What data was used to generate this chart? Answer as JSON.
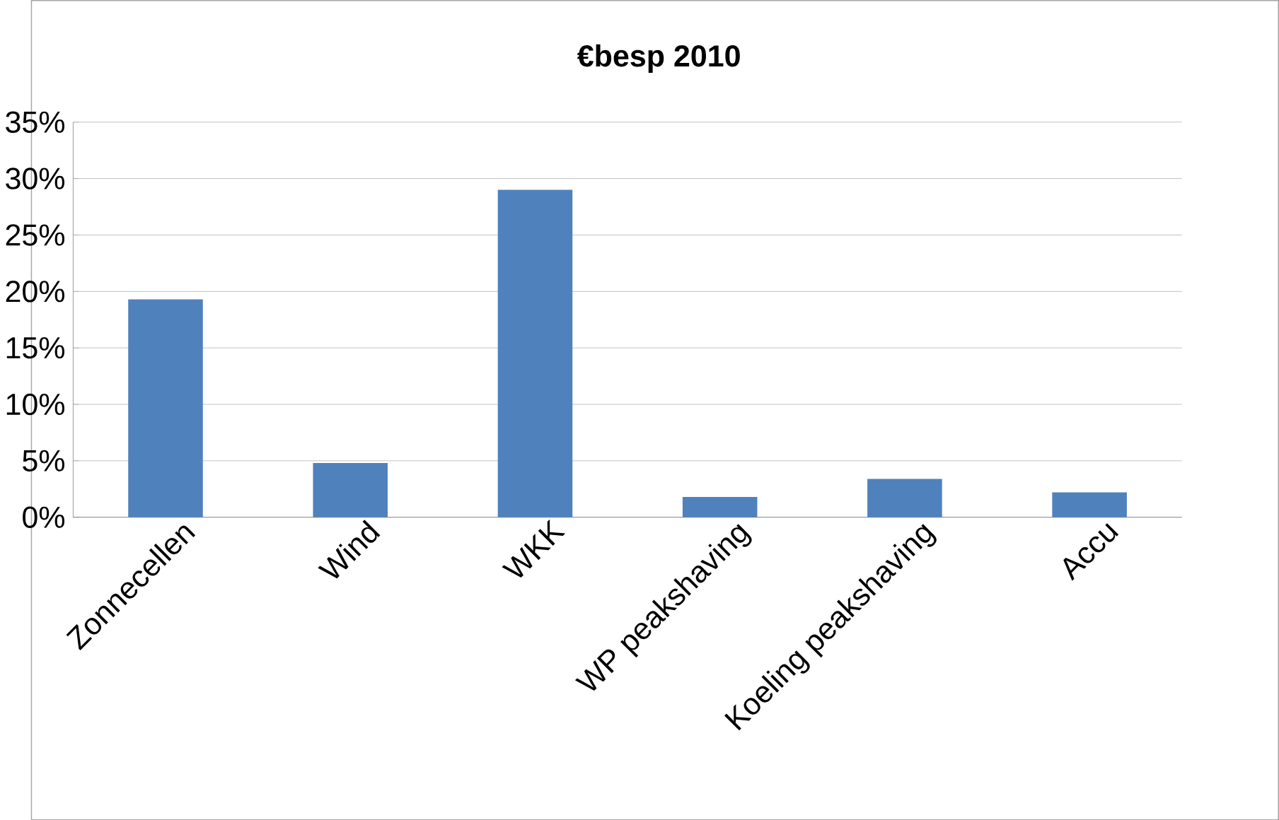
{
  "chart_data": {
    "type": "bar",
    "title": "€besp 2010",
    "categories": [
      "Zonnecellen",
      "Wind",
      "WKK",
      "WP peakshaving",
      "Koeling peakshaving",
      "Accu"
    ],
    "values": [
      19.3,
      4.8,
      29.0,
      1.8,
      3.4,
      2.2
    ],
    "color": "#4f81bd",
    "ylim": [
      0,
      35
    ],
    "yticks": [
      {
        "value": 0,
        "label": "0%"
      },
      {
        "value": 5,
        "label": "5%"
      },
      {
        "value": 10,
        "label": "10%"
      },
      {
        "value": 15,
        "label": "15%"
      },
      {
        "value": 20,
        "label": "20%"
      },
      {
        "value": 25,
        "label": "25%"
      },
      {
        "value": 30,
        "label": "30%"
      },
      {
        "value": 35,
        "label": "35%"
      }
    ],
    "grid": "y"
  }
}
